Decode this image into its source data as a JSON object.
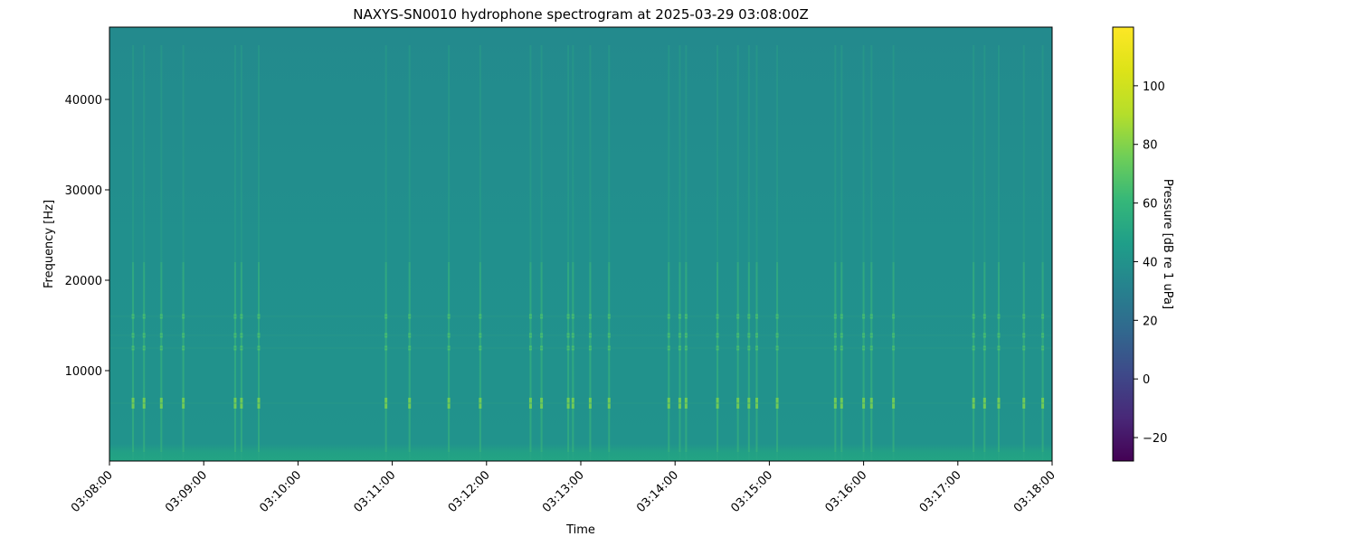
{
  "chart_data": {
    "type": "heatmap",
    "title": "NAXYS-SN0010 hydrophone spectrogram at 2025-03-29 03:08:00Z",
    "xlabel": "Time",
    "ylabel": "Frequency [Hz]",
    "colorbar_label": "Pressure [dB re 1 uPa]",
    "colormap": "viridis",
    "xlim": [
      "03:08:00",
      "03:18:00"
    ],
    "x_ticks": [
      "03:08:00",
      "03:09:00",
      "03:10:00",
      "03:11:00",
      "03:12:00",
      "03:13:00",
      "03:14:00",
      "03:15:00",
      "03:16:00",
      "03:17:00",
      "03:18:00"
    ],
    "ylim": [
      0,
      48000
    ],
    "y_ticks": [
      10000,
      20000,
      30000,
      40000
    ],
    "clim": [
      -28,
      120
    ],
    "colorbar_ticks": [
      -20,
      0,
      20,
      40,
      60,
      80,
      100
    ],
    "background_level_db": 45,
    "low_frequency_band_hz": [
      0,
      1000
    ],
    "tonal_bands_hz": [
      6400,
      12500,
      13900,
      16000
    ],
    "transient_events": [
      "03:08:15",
      "03:08:22",
      "03:08:33",
      "03:08:47",
      "03:09:20",
      "03:09:24",
      "03:09:35",
      "03:10:56",
      "03:11:11",
      "03:11:36",
      "03:11:56",
      "03:12:28",
      "03:12:35",
      "03:12:52",
      "03:12:55",
      "03:13:06",
      "03:13:18",
      "03:13:56",
      "03:14:03",
      "03:14:07",
      "03:14:27",
      "03:14:40",
      "03:14:47",
      "03:14:52",
      "03:15:05",
      "03:15:42",
      "03:15:46",
      "03:16:00",
      "03:16:05",
      "03:16:19",
      "03:17:10",
      "03:17:17",
      "03:17:26",
      "03:17:42",
      "03:17:54"
    ]
  }
}
